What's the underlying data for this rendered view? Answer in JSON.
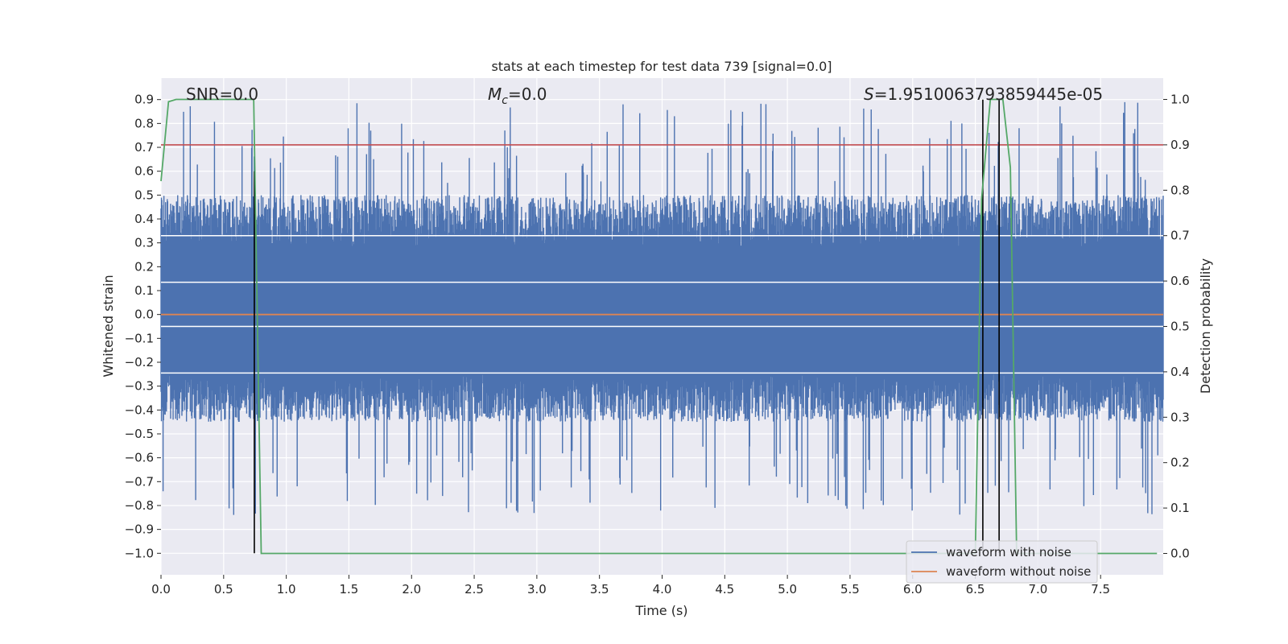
{
  "chart_data": {
    "type": "line",
    "title": "stats at each timestep for test data 739 [signal=0.0]",
    "xlabel": "Time (s)",
    "ylabel": "Whitened strain",
    "y2label": "Detection probability",
    "xlim": [
      0.0,
      8.0
    ],
    "ylim": [
      -1.09,
      0.99
    ],
    "y2lim": [
      -0.047,
      1.047
    ],
    "xticks": [
      "0.0",
      "0.5",
      "1.0",
      "1.5",
      "2.0",
      "2.5",
      "3.0",
      "3.5",
      "4.0",
      "4.5",
      "5.0",
      "5.5",
      "6.0",
      "6.5",
      "7.0",
      "7.5"
    ],
    "yticks": [
      "0.9",
      "0.8",
      "0.7",
      "0.6",
      "0.5",
      "0.4",
      "0.3",
      "0.2",
      "0.1",
      "0.0",
      "−0.1",
      "−0.2",
      "−0.3",
      "−0.4",
      "−0.5",
      "−0.6",
      "−0.7",
      "−0.8",
      "−0.9",
      "−1.0"
    ],
    "y2ticks": [
      "1.0",
      "0.9",
      "0.8",
      "0.7",
      "0.6",
      "0.5",
      "0.4",
      "0.3",
      "0.2",
      "0.1",
      "0.0"
    ],
    "annotations": {
      "snr": "SNR=0.0",
      "mc_symbol": "M",
      "mc_sub": "c",
      "mc_value": "=0.0",
      "s_symbol": "S",
      "s_value": "=1.9510063793859445e-05"
    },
    "grid": true,
    "legend_position": "lower-right",
    "series": [
      {
        "name": "waveform with noise",
        "axis": "left",
        "color": "#4c72b0",
        "description": "dense white-noise trace, mostly within ±0.45, peaks to about ±0.85",
        "seed": 739,
        "n_points": 2400,
        "y_range_typical": [
          -0.45,
          0.5
        ],
        "y_range_extreme": [
          -0.84,
          0.89
        ]
      },
      {
        "name": "waveform without noise",
        "axis": "left",
        "color": "#dd8452",
        "x": [
          0.0,
          8.0
        ],
        "y": [
          0.0,
          0.0
        ]
      },
      {
        "name": "detection probability",
        "axis": "right",
        "color": "#55a868",
        "x": [
          0.0,
          0.06,
          0.12,
          0.74,
          0.8,
          0.86,
          6.5,
          6.55,
          6.62,
          6.72,
          6.78,
          6.83,
          7.95
        ],
        "y": [
          0.82,
          0.995,
          1.0,
          1.0,
          0.0,
          0.0,
          0.0,
          0.78,
          1.0,
          1.0,
          0.85,
          0.0,
          0.0
        ]
      }
    ],
    "threshold": {
      "axis": "right",
      "value": 0.9,
      "color": "#c44e52"
    },
    "hlines_white": {
      "axis": "left",
      "values": [
        0.33,
        0.135,
        -0.05,
        -0.245
      ]
    },
    "vlines": {
      "color": "#000000",
      "items": [
        {
          "x": 0.745,
          "y0": -1.0,
          "y1": 0.6
        },
        {
          "x": 6.56,
          "y0": -1.0,
          "y1": 0.9
        },
        {
          "x": 6.69,
          "y0": -1.0,
          "y1": 0.9
        }
      ]
    }
  }
}
